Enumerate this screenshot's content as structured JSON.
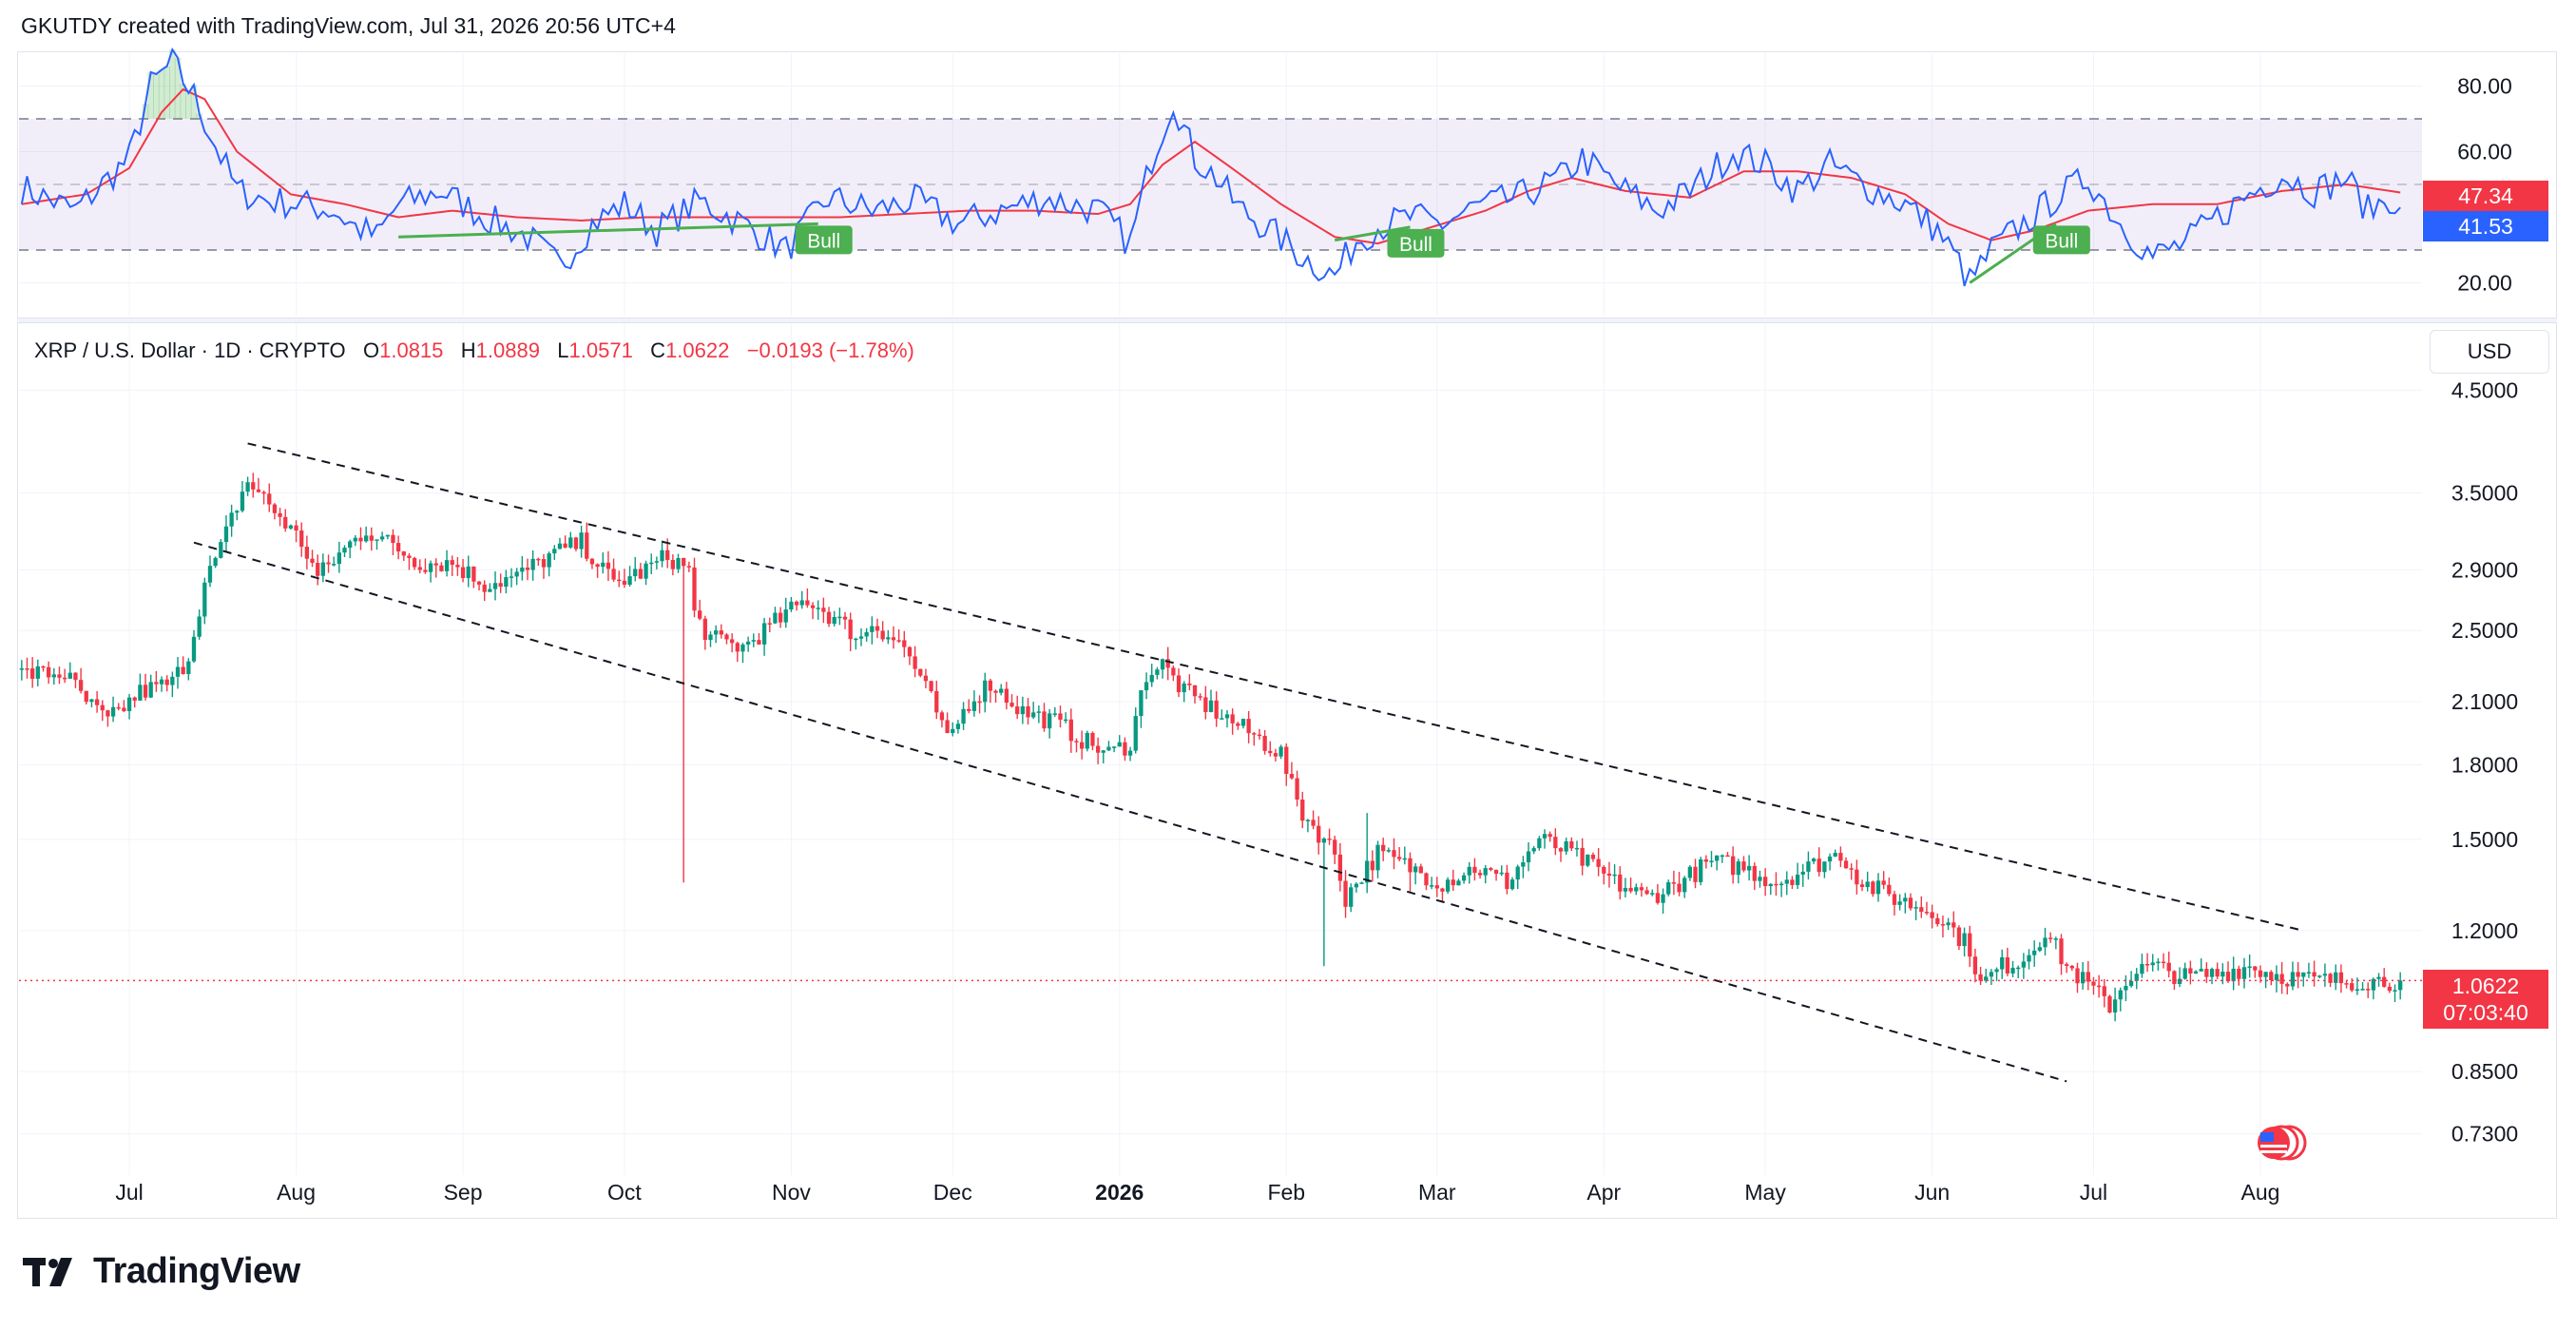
{
  "header": {
    "text": "GKUTDY created with TradingView.com, Jul 31, 2026 20:56 UTC+4"
  },
  "legend": {
    "symbol": "XRP / U.S. Dollar · 1D · CRYPTO",
    "o_label": "O",
    "o": "1.0815",
    "h_label": "H",
    "h": "1.0889",
    "l_label": "L",
    "l": "1.0571",
    "c_label": "C",
    "c": "1.0622",
    "change": "−0.0193 (−1.78%)"
  },
  "currency_button": "USD",
  "price_tag": {
    "price": "1.0622",
    "countdown": "07:03:40"
  },
  "rsi_tags": {
    "ma": "47.34",
    "rsi": "41.53"
  },
  "brand": "TradingView",
  "colors": {
    "up": "#089981",
    "down": "#f23645",
    "rsi_line": "#2962ff",
    "rsi_ma": "#f23645",
    "band": "#7e57c2",
    "bull_label": "#4caf50"
  },
  "chart_data": [
    {
      "type": "line",
      "name": "RSI",
      "y_axis_ticks": [
        "80.00",
        "60.00",
        "20.00"
      ],
      "bands": {
        "upper": 70,
        "middle": 50,
        "lower": 30
      },
      "ylim": [
        10,
        90
      ],
      "keypoints_rsi": [
        [
          0,
          49
        ],
        [
          10,
          42
        ],
        [
          20,
          58
        ],
        [
          24,
          80
        ],
        [
          28,
          87
        ],
        [
          32,
          77
        ],
        [
          36,
          62
        ],
        [
          40,
          48
        ],
        [
          46,
          45
        ],
        [
          52,
          44
        ],
        [
          58,
          42
        ],
        [
          62,
          37
        ],
        [
          66,
          34
        ],
        [
          70,
          44
        ],
        [
          78,
          48
        ],
        [
          86,
          40
        ],
        [
          94,
          34
        ],
        [
          100,
          25
        ],
        [
          106,
          38
        ],
        [
          112,
          44
        ],
        [
          118,
          36
        ],
        [
          126,
          45
        ],
        [
          134,
          38
        ],
        [
          142,
          30
        ],
        [
          150,
          46
        ],
        [
          158,
          42
        ],
        [
          166,
          45
        ],
        [
          174,
          38
        ],
        [
          182,
          42
        ],
        [
          190,
          46
        ],
        [
          200,
          42
        ],
        [
          206,
          32
        ],
        [
          210,
          58
        ],
        [
          214,
          76
        ],
        [
          218,
          58
        ],
        [
          222,
          52
        ],
        [
          226,
          43
        ],
        [
          232,
          36
        ],
        [
          238,
          28
        ],
        [
          244,
          22
        ],
        [
          248,
          33
        ],
        [
          252,
          37
        ],
        [
          258,
          40
        ],
        [
          264,
          38
        ],
        [
          270,
          43
        ],
        [
          278,
          46
        ],
        [
          286,
          52
        ],
        [
          290,
          58
        ],
        [
          296,
          50
        ],
        [
          304,
          42
        ],
        [
          310,
          48
        ],
        [
          318,
          60
        ],
        [
          324,
          56
        ],
        [
          330,
          48
        ],
        [
          336,
          56
        ],
        [
          342,
          50
        ],
        [
          350,
          44
        ],
        [
          356,
          36
        ],
        [
          360,
          26
        ],
        [
          362,
          20
        ],
        [
          366,
          30
        ],
        [
          372,
          38
        ],
        [
          378,
          46
        ],
        [
          384,
          52
        ],
        [
          390,
          38
        ],
        [
          396,
          28
        ],
        [
          402,
          32
        ],
        [
          408,
          40
        ],
        [
          414,
          47
        ],
        [
          420,
          53
        ],
        [
          426,
          48
        ],
        [
          432,
          52
        ],
        [
          436,
          42
        ],
        [
          440,
          46
        ],
        [
          443,
          41.5
        ]
      ],
      "keypoints_ma": [
        [
          0,
          44
        ],
        [
          12,
          47
        ],
        [
          20,
          55
        ],
        [
          26,
          72
        ],
        [
          30,
          79
        ],
        [
          34,
          76
        ],
        [
          40,
          60
        ],
        [
          50,
          47
        ],
        [
          60,
          44
        ],
        [
          70,
          40
        ],
        [
          80,
          42
        ],
        [
          92,
          40
        ],
        [
          104,
          39
        ],
        [
          116,
          40
        ],
        [
          128,
          40
        ],
        [
          140,
          40
        ],
        [
          152,
          40
        ],
        [
          164,
          41
        ],
        [
          176,
          42
        ],
        [
          188,
          42
        ],
        [
          200,
          41
        ],
        [
          206,
          44
        ],
        [
          212,
          56
        ],
        [
          218,
          63
        ],
        [
          224,
          56
        ],
        [
          234,
          44
        ],
        [
          244,
          34
        ],
        [
          252,
          32
        ],
        [
          262,
          37
        ],
        [
          272,
          42
        ],
        [
          280,
          48
        ],
        [
          288,
          52
        ],
        [
          298,
          48
        ],
        [
          310,
          46
        ],
        [
          320,
          54
        ],
        [
          330,
          54
        ],
        [
          340,
          52
        ],
        [
          350,
          47
        ],
        [
          358,
          38
        ],
        [
          366,
          33
        ],
        [
          374,
          36
        ],
        [
          384,
          42
        ],
        [
          396,
          44
        ],
        [
          408,
          44
        ],
        [
          420,
          48
        ],
        [
          432,
          50
        ],
        [
          443,
          47.3
        ]
      ],
      "divergences": [
        {
          "label": "Bull",
          "from": [
            70,
            34
          ],
          "to": [
            148,
            38
          ]
        },
        {
          "label": "Bull",
          "from": [
            244,
            33
          ],
          "to": [
            258,
            37
          ]
        },
        {
          "label": "Bull",
          "from": [
            362,
            20
          ],
          "to": [
            378,
            38
          ]
        }
      ]
    },
    {
      "type": "candlestick",
      "title": "XRP / U.S. Dollar · 1D · CRYPTO",
      "scale": "log",
      "ylim": [
        0.66,
        5.3
      ],
      "y_axis_ticks": [
        "4.5000",
        "3.5000",
        "2.9000",
        "2.5000",
        "2.1000",
        "1.8000",
        "1.5000",
        "1.2000",
        "0.8500",
        "0.7300"
      ],
      "x_axis_ticks": [
        "Jul",
        "Aug",
        "Sep",
        "Oct",
        "Nov",
        "Dec",
        "2026",
        "Feb",
        "Mar",
        "Apr",
        "May",
        "Jun",
        "Jul",
        "Aug"
      ],
      "x_tick_days": [
        20,
        51,
        82,
        112,
        143,
        173,
        204,
        235,
        263,
        294,
        324,
        355,
        385,
        416
      ],
      "days": 443,
      "keypoints_close": [
        [
          0,
          2.25
        ],
        [
          8,
          2.25
        ],
        [
          12,
          2.1
        ],
        [
          16,
          2.0
        ],
        [
          22,
          2.15
        ],
        [
          28,
          2.2
        ],
        [
          31,
          2.35
        ],
        [
          34,
          2.8
        ],
        [
          37,
          3.05
        ],
        [
          40,
          3.4
        ],
        [
          42,
          3.6
        ],
        [
          44,
          3.5
        ],
        [
          48,
          3.3
        ],
        [
          52,
          3.1
        ],
        [
          55,
          2.85
        ],
        [
          60,
          3.05
        ],
        [
          64,
          3.2
        ],
        [
          68,
          3.1
        ],
        [
          74,
          2.95
        ],
        [
          80,
          2.95
        ],
        [
          86,
          2.8
        ],
        [
          92,
          2.85
        ],
        [
          98,
          3.0
        ],
        [
          104,
          3.1
        ],
        [
          110,
          2.8
        ],
        [
          116,
          2.9
        ],
        [
          120,
          3.0
        ],
        [
          124,
          2.9
        ],
        [
          125,
          2.6
        ],
        [
          128,
          2.45
        ],
        [
          134,
          2.4
        ],
        [
          140,
          2.55
        ],
        [
          146,
          2.7
        ],
        [
          150,
          2.6
        ],
        [
          156,
          2.45
        ],
        [
          158,
          2.55
        ],
        [
          164,
          2.4
        ],
        [
          170,
          2.05
        ],
        [
          172,
          1.9
        ],
        [
          176,
          2.1
        ],
        [
          180,
          2.2
        ],
        [
          186,
          2.05
        ],
        [
          192,
          2.0
        ],
        [
          198,
          1.9
        ],
        [
          202,
          1.85
        ],
        [
          206,
          1.9
        ],
        [
          209,
          2.25
        ],
        [
          212,
          2.3
        ],
        [
          216,
          2.15
        ],
        [
          222,
          2.05
        ],
        [
          228,
          1.95
        ],
        [
          234,
          1.85
        ],
        [
          236,
          1.7
        ],
        [
          238,
          1.6
        ],
        [
          242,
          1.5
        ],
        [
          244,
          1.45
        ],
        [
          246,
          1.3
        ],
        [
          248,
          1.35
        ],
        [
          252,
          1.45
        ],
        [
          258,
          1.4
        ],
        [
          264,
          1.35
        ],
        [
          270,
          1.4
        ],
        [
          276,
          1.35
        ],
        [
          282,
          1.5
        ],
        [
          288,
          1.45
        ],
        [
          296,
          1.35
        ],
        [
          302,
          1.3
        ],
        [
          308,
          1.35
        ],
        [
          314,
          1.42
        ],
        [
          320,
          1.4
        ],
        [
          326,
          1.35
        ],
        [
          332,
          1.4
        ],
        [
          338,
          1.45
        ],
        [
          342,
          1.35
        ],
        [
          348,
          1.3
        ],
        [
          356,
          1.25
        ],
        [
          362,
          1.15
        ],
        [
          364,
          1.05
        ],
        [
          368,
          1.1
        ],
        [
          372,
          1.12
        ],
        [
          376,
          1.2
        ],
        [
          380,
          1.1
        ],
        [
          384,
          1.05
        ],
        [
          388,
          1.0
        ],
        [
          392,
          1.08
        ],
        [
          396,
          1.1
        ],
        [
          402,
          1.07
        ],
        [
          408,
          1.08
        ],
        [
          414,
          1.1
        ],
        [
          418,
          1.08
        ],
        [
          422,
          1.07
        ],
        [
          427,
          1.062
        ]
      ],
      "spikes": [
        [
          123,
          1.35
        ],
        [
          242,
          1.1
        ],
        [
          250,
          1.6
        ],
        [
          258,
          1.32
        ]
      ],
      "last_close": 1.0622,
      "channel": {
        "upper": [
          [
            42,
            3.95
          ],
          [
            424,
            1.2
          ]
        ],
        "lower": [
          [
            32,
            3.1
          ],
          [
            380,
            0.83
          ]
        ]
      }
    }
  ]
}
